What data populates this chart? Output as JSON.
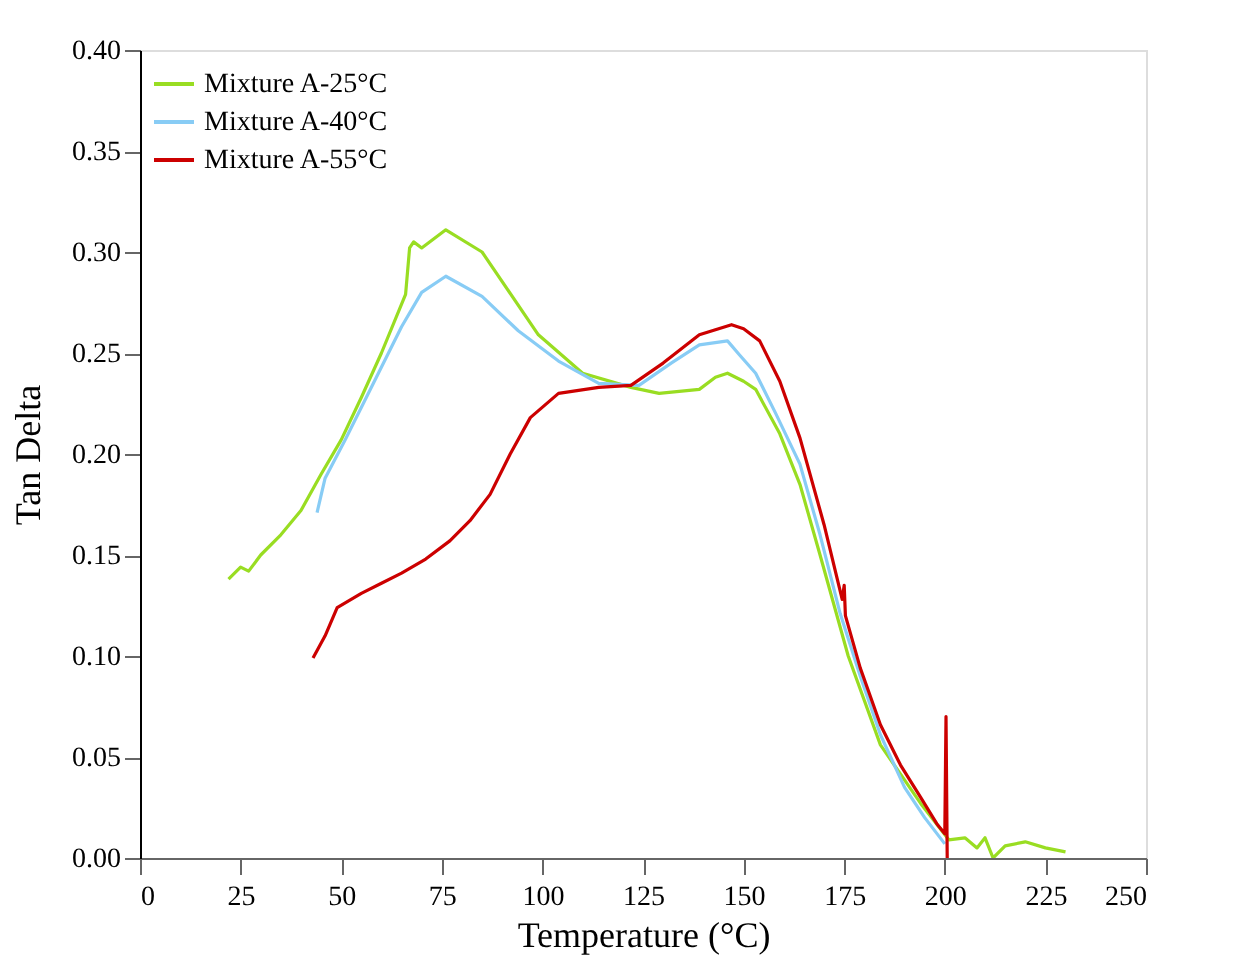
{
  "chart_data": {
    "type": "line",
    "xlabel": "Temperature (°C)",
    "ylabel": "Tan Delta",
    "xlim": [
      0,
      250
    ],
    "ylim": [
      0,
      0.4
    ],
    "xticks": [
      0,
      25,
      50,
      75,
      100,
      125,
      150,
      175,
      200,
      225,
      250
    ],
    "yticks": [
      {
        "value": 0,
        "label": "0.00"
      },
      0.05,
      {
        "value": 0.1,
        "label": "0.10"
      },
      0.15,
      {
        "value": 0.2,
        "label": "0.20"
      },
      0.25,
      {
        "value": 0.3,
        "label": "0.30"
      },
      0.35,
      {
        "value": 0.4,
        "label": "0.40"
      }
    ],
    "grid": false,
    "legend": "top left",
    "marker": "none",
    "line_style": "solid",
    "series": [
      {
        "name": "Mixture A-25°C",
        "color": "#99dd22",
        "x": [
          22,
          25,
          27,
          30,
          35,
          40,
          45,
          50,
          55,
          60,
          66,
          67,
          68,
          70,
          76,
          85,
          99,
          110,
          122,
          129,
          139,
          143,
          146,
          150,
          153,
          159,
          164,
          169,
          176,
          184,
          194,
          201,
          205,
          208,
          210,
          212,
          215,
          220,
          225,
          230
        ],
        "values": [
          0.138,
          0.144,
          0.142,
          0.15,
          0.16,
          0.172,
          0.19,
          0.207,
          0.228,
          0.25,
          0.279,
          0.302,
          0.305,
          0.302,
          0.311,
          0.3,
          0.259,
          0.24,
          0.233,
          0.23,
          0.232,
          0.238,
          0.24,
          0.236,
          0.232,
          0.21,
          0.185,
          0.15,
          0.1,
          0.056,
          0.027,
          0.009,
          0.01,
          0.005,
          0.01,
          0.0,
          0.006,
          0.008,
          0.005,
          0.003
        ]
      },
      {
        "name": "Mixture A-40°C",
        "color": "#88ccf5",
        "x": [
          44,
          46,
          51,
          58,
          65,
          70,
          76,
          85,
          94,
          104,
          114,
          124,
          132,
          139,
          146,
          149,
          153,
          158,
          164,
          169,
          174,
          179,
          184,
          190,
          195,
          200
        ],
        "values": [
          0.171,
          0.188,
          0.207,
          0.235,
          0.263,
          0.28,
          0.288,
          0.278,
          0.261,
          0.246,
          0.235,
          0.234,
          0.245,
          0.254,
          0.256,
          0.249,
          0.24,
          0.22,
          0.195,
          0.16,
          0.121,
          0.09,
          0.061,
          0.035,
          0.02,
          0.007
        ]
      },
      {
        "name": "Mixture A-55°C",
        "color": "#cc0000",
        "x": [
          43,
          46,
          49,
          55,
          60,
          65,
          71,
          77,
          82,
          87,
          92,
          97,
          104,
          114,
          122,
          130,
          139,
          147,
          150,
          154,
          159,
          164,
          170,
          174.5,
          175,
          175.3,
          179,
          184,
          189,
          194,
          198,
          200,
          200.3,
          200.6
        ],
        "values": [
          0.099,
          0.11,
          0.124,
          0.131,
          0.136,
          0.141,
          0.148,
          0.157,
          0.167,
          0.18,
          0.2,
          0.218,
          0.23,
          0.233,
          0.234,
          0.245,
          0.259,
          0.264,
          0.262,
          0.256,
          0.236,
          0.208,
          0.165,
          0.128,
          0.135,
          0.12,
          0.094,
          0.066,
          0.046,
          0.03,
          0.017,
          0.012,
          0.07,
          0.0
        ]
      }
    ]
  }
}
